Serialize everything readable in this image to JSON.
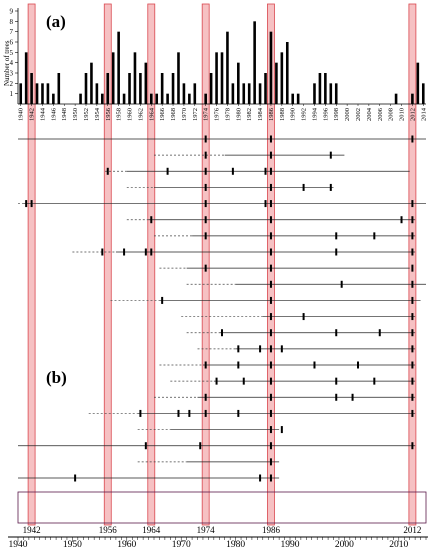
{
  "chart_data": [
    {
      "panel_label": "(a)",
      "type": "bar",
      "ylabel": "Number of trees",
      "ylim": [
        0,
        9
      ],
      "yticks": [
        1,
        2,
        3,
        4,
        5,
        6,
        7,
        8,
        9
      ],
      "x": [
        1940,
        1941,
        1942,
        1943,
        1944,
        1945,
        1946,
        1947,
        1948,
        1949,
        1950,
        1951,
        1952,
        1953,
        1954,
        1955,
        1956,
        1957,
        1958,
        1959,
        1960,
        1961,
        1962,
        1963,
        1964,
        1965,
        1966,
        1967,
        1968,
        1969,
        1970,
        1971,
        1972,
        1973,
        1974,
        1975,
        1976,
        1977,
        1978,
        1979,
        1980,
        1981,
        1982,
        1983,
        1984,
        1985,
        1986,
        1987,
        1988,
        1989,
        1990,
        1991,
        1992,
        1993,
        1994,
        1995,
        1996,
        1997,
        1998,
        1999,
        2000,
        2001,
        2002,
        2003,
        2004,
        2005,
        2006,
        2007,
        2008,
        2009,
        2010,
        2011,
        2012,
        2013,
        2014,
        2015
      ],
      "values": [
        2,
        5,
        3,
        2,
        2,
        2,
        1,
        3,
        0,
        0,
        0,
        1,
        3,
        4,
        2,
        1,
        3,
        5,
        7,
        1,
        3,
        5,
        3,
        4,
        1,
        1,
        3,
        1,
        3,
        5,
        2,
        1,
        2,
        0,
        1,
        3,
        5,
        5,
        7,
        2,
        4,
        2,
        2,
        8,
        2,
        3,
        7,
        4,
        5,
        6,
        1,
        1,
        0,
        0,
        2,
        3,
        3,
        2,
        2,
        0,
        0,
        0,
        0,
        0,
        0,
        0,
        0,
        0,
        0,
        1,
        0,
        0,
        1,
        4,
        2,
        0
      ],
      "xtick_labels": [
        "1940",
        "1942",
        "1944",
        "1946",
        "1948",
        "1950",
        "1952",
        "1954",
        "1956",
        "1958",
        "1960",
        "1962",
        "1964",
        "1966",
        "1968",
        "1970",
        "1972",
        "1974",
        "1976",
        "1978",
        "1980",
        "1982",
        "1984",
        "1986",
        "1988",
        "1990",
        "1992",
        "1994",
        "1996",
        "1998",
        "2000",
        "2002",
        "2004",
        "2006",
        "2008",
        "2010",
        "2012",
        "2014"
      ],
      "highlight_years": [
        1942,
        1956,
        1964,
        1974,
        1986,
        2012
      ]
    },
    {
      "panel_label": "(b)",
      "type": "timeline",
      "xlim": [
        1940,
        2015
      ],
      "xtick_labels": [
        "1940",
        "1950",
        "1960",
        "1970",
        "1980",
        "1990",
        "2000",
        "2010"
      ],
      "highlight_years": [
        1942,
        1956,
        1964,
        1974,
        1986,
        2012
      ],
      "highlight_labels": [
        "1942",
        "1956",
        "1964",
        "1974",
        "1986",
        "2012"
      ],
      "rows": [
        {
          "dash_start": 1940,
          "solid_start": 1940,
          "end": 2015,
          "markers": [
            1974,
            1986,
            2012
          ]
        },
        {
          "dash_start": 1965,
          "solid_start": 1978,
          "end": 2000,
          "markers": [
            1974,
            1986,
            1997
          ]
        },
        {
          "dash_start": 1956,
          "solid_start": 1960,
          "end": 2012,
          "markers": [
            1956,
            1967,
            1974,
            1979,
            1985,
            1986
          ]
        },
        {
          "dash_start": 1960,
          "solid_start": 1965,
          "end": 1998,
          "markers": [
            1974,
            1986,
            1992,
            1997
          ]
        },
        {
          "dash_start": 1940,
          "solid_start": 1941,
          "end": 2015,
          "markers": [
            1941,
            1942,
            1974,
            1985,
            1986,
            2012
          ]
        },
        {
          "dash_start": 1960,
          "solid_start": 1964,
          "end": 2013,
          "markers": [
            1964,
            1974,
            1986,
            2010,
            2012
          ]
        },
        {
          "dash_start": 1965,
          "solid_start": 1972,
          "end": 2013,
          "markers": [
            1974,
            1986,
            1998,
            2005,
            2012
          ]
        },
        {
          "dash_start": 1950,
          "solid_start": 1958,
          "end": 2013,
          "markers": [
            1955,
            1959,
            1963,
            1964,
            1986,
            1998,
            2012
          ]
        },
        {
          "dash_start": 1966,
          "solid_start": 1971,
          "end": 2012,
          "markers": [
            1974,
            1986,
            2012
          ]
        },
        {
          "dash_start": 1971,
          "solid_start": 1980,
          "end": 2015,
          "markers": [
            1986,
            1999,
            2012
          ]
        },
        {
          "dash_start": 1957,
          "solid_start": 1966,
          "end": 2014,
          "markers": [
            1966,
            1986,
            2012
          ]
        },
        {
          "dash_start": 1970,
          "solid_start": 1985,
          "end": 2013,
          "markers": [
            1986,
            1992,
            2012
          ]
        },
        {
          "dash_start": 1971,
          "solid_start": 1977,
          "end": 2013,
          "markers": [
            1977,
            1986,
            1998,
            2006,
            2012
          ]
        },
        {
          "dash_start": 1973,
          "solid_start": 1980,
          "end": 2013,
          "markers": [
            1980,
            1984,
            1986,
            1988,
            2012
          ]
        },
        {
          "dash_start": 1966,
          "solid_start": 1974,
          "end": 2013,
          "markers": [
            1974,
            1980,
            1986,
            1994,
            2002,
            2012
          ]
        },
        {
          "dash_start": 1968,
          "solid_start": 1976,
          "end": 2013,
          "markers": [
            1976,
            1981,
            1986,
            1998,
            2005,
            2012
          ]
        },
        {
          "dash_start": 1965,
          "solid_start": 1973,
          "end": 2013,
          "markers": [
            1974,
            1986,
            1998,
            2001,
            2012
          ]
        },
        {
          "dash_start": 1953,
          "solid_start": 1962,
          "end": 2013,
          "markers": [
            1962,
            1969,
            1971,
            1974,
            1980,
            1986,
            2012
          ]
        },
        {
          "dash_start": 1962,
          "solid_start": 1968,
          "end": 1988,
          "markers": [
            1986,
            1988
          ]
        },
        {
          "dash_start": 1940,
          "solid_start": 1940,
          "end": 2013,
          "markers": [
            1963,
            1973,
            1986,
            2012
          ]
        },
        {
          "dash_start": 1962,
          "solid_start": 1971,
          "end": 1988,
          "markers": [
            1986
          ]
        },
        {
          "dash_start": 1940,
          "solid_start": 1940,
          "end": 1988,
          "markers": [
            1950,
            1984,
            1986
          ]
        }
      ]
    }
  ]
}
